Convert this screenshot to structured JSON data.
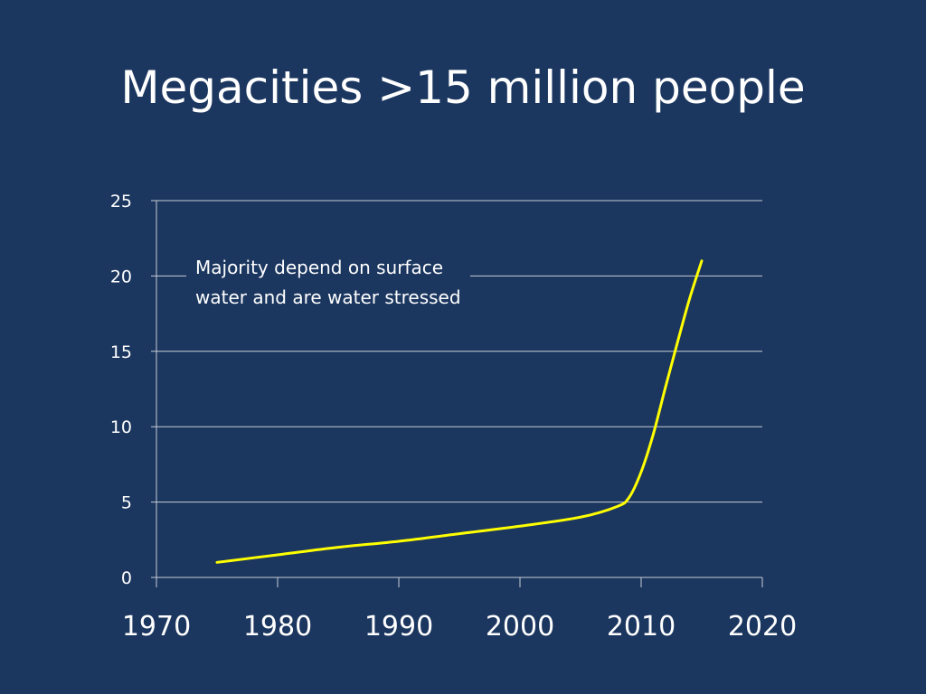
{
  "slide": {
    "title": "Megacities >15 million people"
  },
  "chart_data": {
    "type": "line",
    "title": "Megacities >15 million people",
    "xlabel": "",
    "ylabel": "",
    "xlim": [
      1970,
      2020
    ],
    "ylim": [
      0,
      25
    ],
    "x_ticks": [
      1970,
      1980,
      1990,
      2000,
      2010,
      2020
    ],
    "y_ticks": [
      0,
      5,
      10,
      15,
      20,
      25
    ],
    "grid": true,
    "legend": "none",
    "series": [
      {
        "name": "Megacities",
        "color": "#ffff00",
        "x": [
          1975,
          1980,
          1985,
          1990,
          1995,
          2000,
          2005,
          2008,
          2009,
          2010,
          2011,
          2012,
          2013,
          2014,
          2015
        ],
        "y": [
          1,
          1.5,
          2,
          2.4,
          2.9,
          3.4,
          4,
          4.7,
          5.3,
          7,
          9.5,
          12.6,
          15.6,
          18.5,
          21
        ]
      }
    ],
    "annotation": {
      "line1": "Majority depend on surface",
      "line2": "water and are water stressed"
    }
  }
}
